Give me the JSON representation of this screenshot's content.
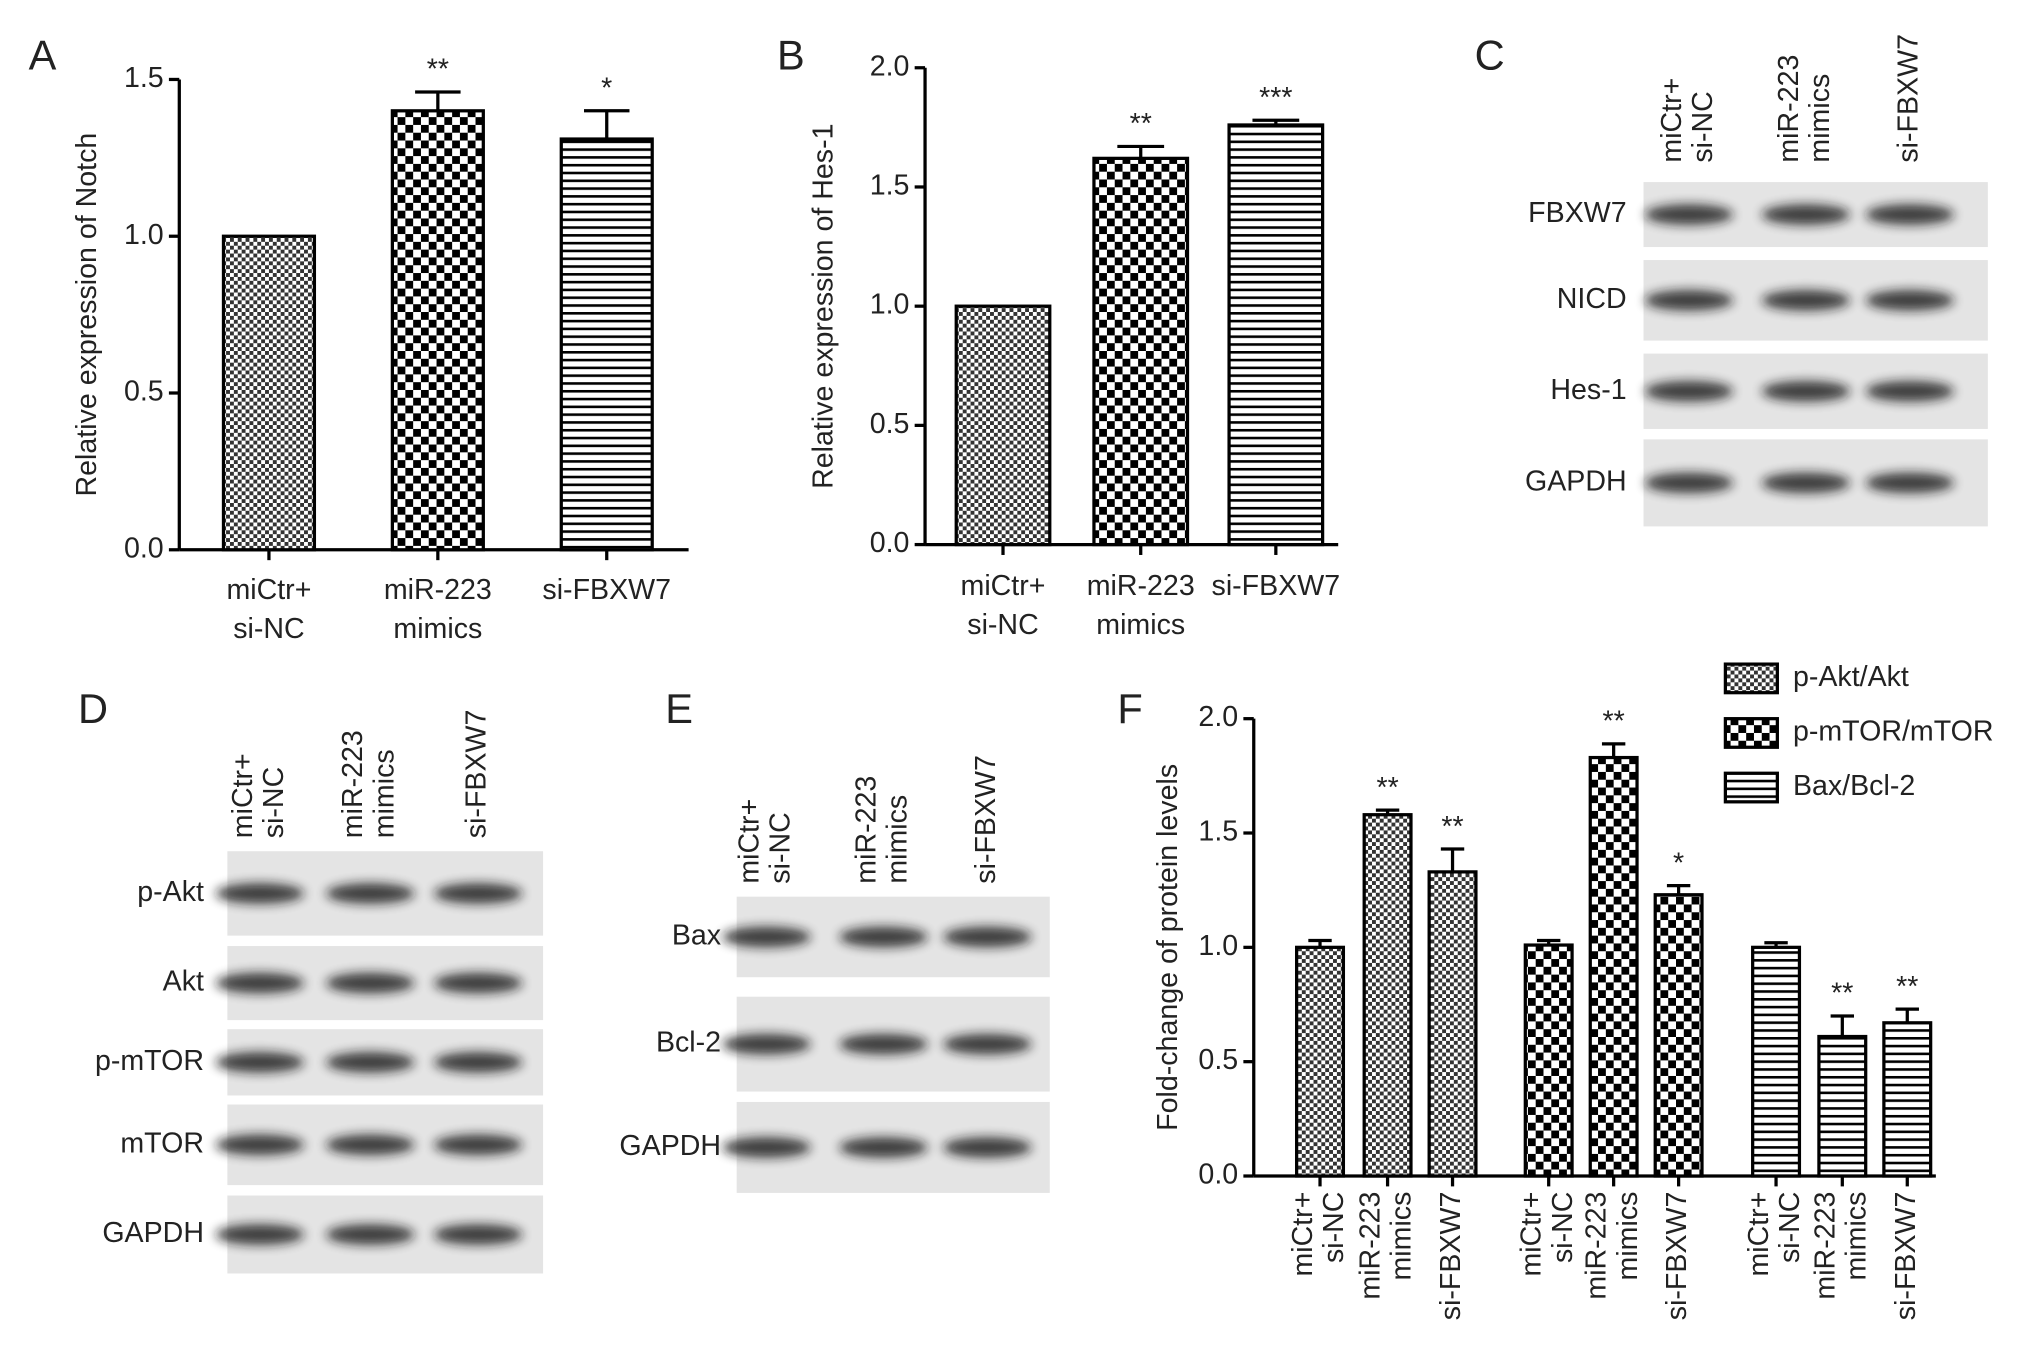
{
  "chart_data": [
    {
      "type": "bar",
      "panel": "A",
      "ylabel": "Relative expression of Notch",
      "categories": [
        [
          "miCtr+",
          "si-NC"
        ],
        [
          "miR-223",
          "mimics"
        ],
        [
          "si-FBXW7"
        ]
      ],
      "values": [
        1.0,
        1.4,
        1.31
      ],
      "errors": [
        null,
        0.06,
        0.09
      ],
      "annotations": [
        null,
        "**",
        "*"
      ],
      "patterns": [
        "fine-check",
        "big-check",
        "hstripe"
      ],
      "color": "#000000",
      "ylim": [
        0,
        1.5
      ],
      "yticks": [
        {
          "value": 0,
          "label": "0.0"
        },
        0.5,
        {
          "value": 1,
          "label": "1.0"
        },
        1.5
      ]
    },
    {
      "type": "bar",
      "panel": "B",
      "ylabel": "Relative expression of Hes-1",
      "categories": [
        [
          "miCtr+",
          "si-NC"
        ],
        [
          "miR-223",
          "mimics"
        ],
        [
          "si-FBXW7"
        ]
      ],
      "values": [
        1.0,
        1.62,
        1.76
      ],
      "errors": [
        null,
        0.05,
        0.02
      ],
      "annotations": [
        null,
        "**",
        "***"
      ],
      "patterns": [
        "fine-check",
        "big-check",
        "hstripe"
      ],
      "color": "#000000",
      "ylim": [
        0,
        2
      ],
      "yticks": [
        {
          "value": 0,
          "label": "0.0"
        },
        0.5,
        {
          "value": 1,
          "label": "1.0"
        },
        1.5,
        {
          "value": 2,
          "label": "2.0"
        }
      ]
    },
    {
      "type": "grouped_bar",
      "panel": "F",
      "ylabel": "Fold-change of protein levels",
      "categories": [
        [
          "miCtr+",
          "si-NC"
        ],
        [
          "miR-223",
          "mimics"
        ],
        [
          "si-FBXW7"
        ]
      ],
      "series": [
        {
          "name": "p-Akt/Akt",
          "pattern": "fine-check",
          "color": "#000000",
          "values": [
            1.0,
            1.58,
            1.33
          ],
          "errors": [
            0.03,
            0.02,
            0.1
          ],
          "annotations": [
            null,
            "**",
            "**"
          ]
        },
        {
          "name": "p-mTOR/mTOR",
          "pattern": "big-check",
          "color": "#000000",
          "values": [
            1.01,
            1.83,
            1.23
          ],
          "errors": [
            0.02,
            0.06,
            0.04
          ],
          "annotations": [
            null,
            "**",
            "*"
          ]
        },
        {
          "name": "Bax/Bcl-2",
          "pattern": "hstripe",
          "color": "#000000",
          "values": [
            1.0,
            0.61,
            0.67
          ],
          "errors": [
            0.02,
            0.09,
            0.06
          ],
          "annotations": [
            null,
            "**",
            "**"
          ]
        }
      ],
      "legend": "top-right",
      "ylim": [
        0,
        2
      ],
      "yticks": [
        {
          "value": 0,
          "label": "0.0"
        },
        0.5,
        {
          "value": 1,
          "label": "1.0"
        },
        1.5,
        {
          "value": 2,
          "label": "2.0"
        }
      ]
    }
  ],
  "blots": [
    {
      "panel": "C",
      "lanes": [
        [
          "miCtr+",
          "si-NC"
        ],
        [
          "miR-223",
          "mimics"
        ],
        [
          "si-FBXW7"
        ]
      ],
      "rows": [
        "FBXW7",
        "NICD",
        "Hes-1",
        "GAPDH"
      ]
    },
    {
      "panel": "D",
      "lanes": [
        [
          "miCtr+",
          "si-NC"
        ],
        [
          "miR-223",
          "mimics"
        ],
        [
          "si-FBXW7"
        ]
      ],
      "rows": [
        "p-Akt",
        "Akt",
        "p-mTOR",
        "mTOR",
        "GAPDH"
      ]
    },
    {
      "panel": "E",
      "lanes": [
        [
          "miCtr+",
          "si-NC"
        ],
        [
          "miR-223",
          "mimics"
        ],
        [
          "si-FBXW7"
        ]
      ],
      "rows": [
        "Bax",
        "Bcl-2",
        "GAPDH"
      ]
    }
  ]
}
